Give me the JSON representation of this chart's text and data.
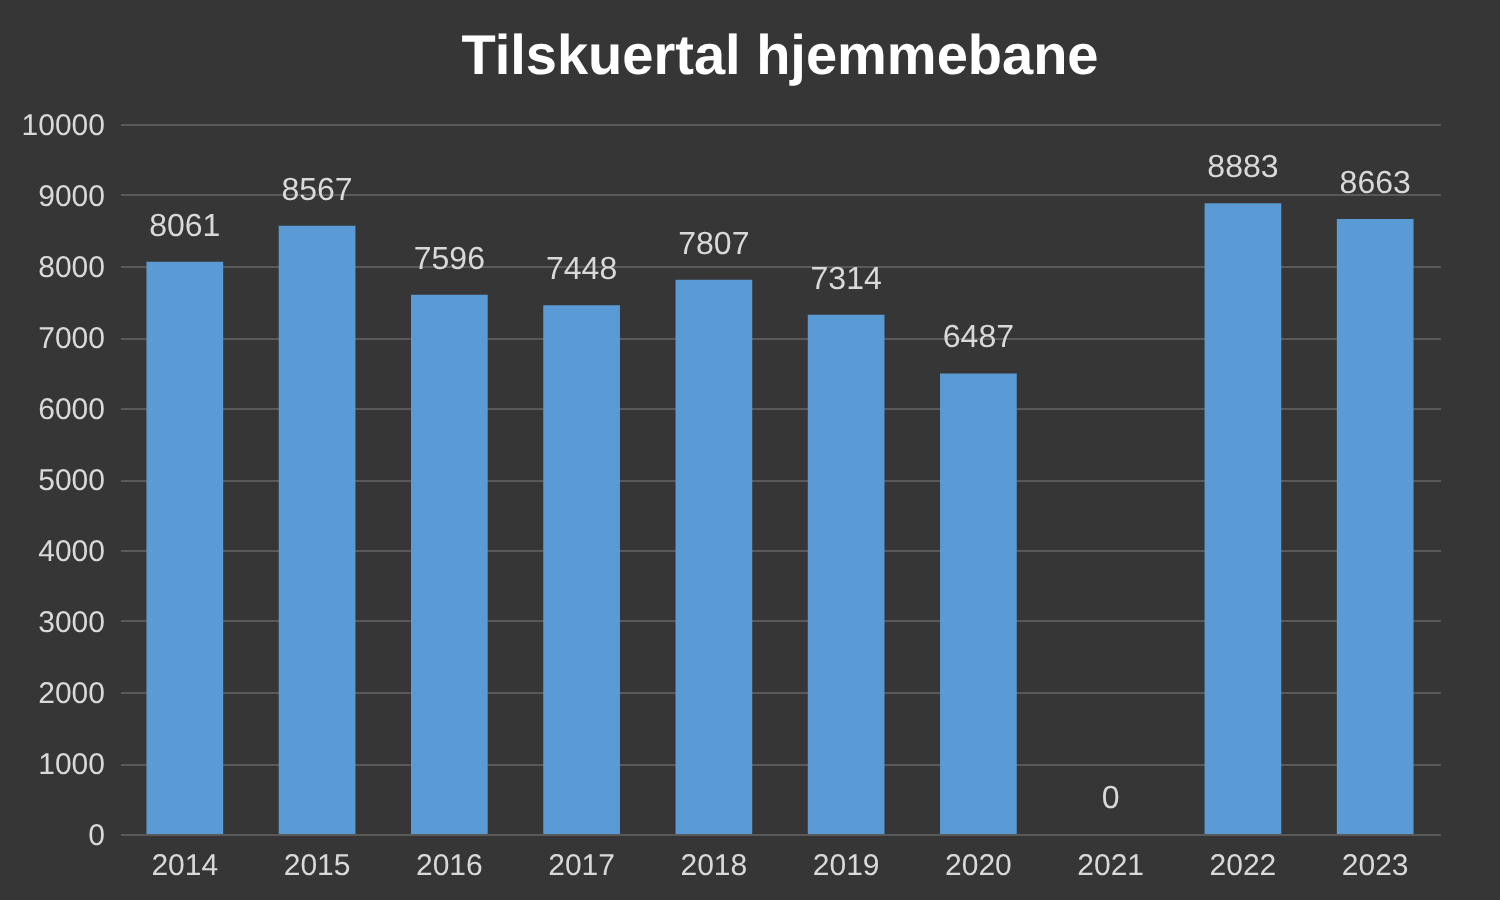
{
  "chart_data": {
    "type": "bar",
    "title": "Tilskuertal hjemmebane",
    "categories": [
      "2014",
      "2015",
      "2016",
      "2017",
      "2018",
      "2019",
      "2020",
      "2021",
      "2022",
      "2023"
    ],
    "values": [
      8061,
      8567,
      7596,
      7448,
      7807,
      7314,
      6487,
      0,
      8883,
      8663
    ],
    "color": "#5b9bd5",
    "ylim": [
      0,
      10000
    ],
    "yticks": [
      0,
      1000,
      2000,
      3000,
      4000,
      5000,
      6000,
      7000,
      8000,
      9000,
      10000
    ],
    "grid": "y",
    "data_labels": true
  }
}
